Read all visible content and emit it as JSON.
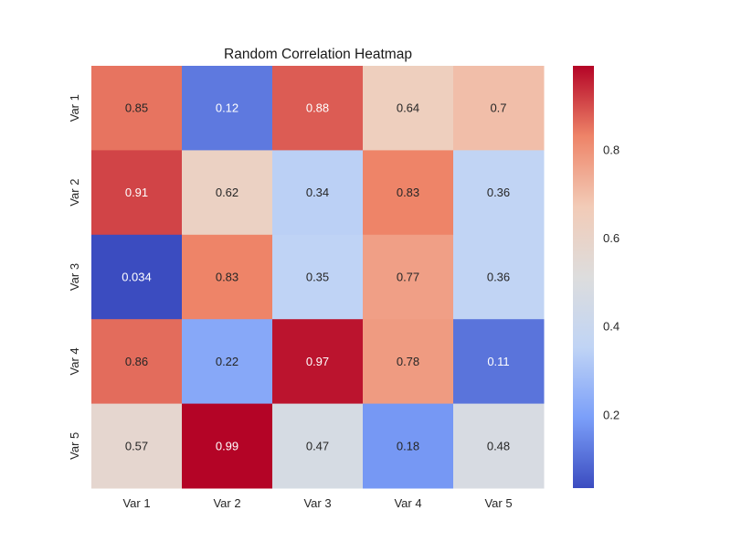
{
  "chart_data": {
    "type": "heatmap",
    "title": "Random Correlation Heatmap",
    "xlabel": "",
    "ylabel": "",
    "rows": [
      "Var 1",
      "Var 2",
      "Var 3",
      "Var 4",
      "Var 5"
    ],
    "columns": [
      "Var 1",
      "Var 2",
      "Var 3",
      "Var 4",
      "Var 5"
    ],
    "values": [
      [
        0.85,
        0.12,
        0.88,
        0.64,
        0.7
      ],
      [
        0.91,
        0.62,
        0.34,
        0.83,
        0.36
      ],
      [
        0.034,
        0.83,
        0.35,
        0.77,
        0.36
      ],
      [
        0.86,
        0.22,
        0.97,
        0.78,
        0.11
      ],
      [
        0.57,
        0.99,
        0.47,
        0.18,
        0.48
      ]
    ],
    "labels": [
      [
        "0.85",
        "0.12",
        "0.88",
        "0.64",
        "0.7"
      ],
      [
        "0.91",
        "0.62",
        "0.34",
        "0.83",
        "0.36"
      ],
      [
        "0.034",
        "0.83",
        "0.35",
        "0.77",
        "0.36"
      ],
      [
        "0.86",
        "0.22",
        "0.97",
        "0.78",
        "0.11"
      ],
      [
        "0.57",
        "0.99",
        "0.47",
        "0.18",
        "0.48"
      ]
    ],
    "colormap": "coolwarm",
    "color_stops": [
      "#3b4cc0",
      "#7b9ff9",
      "#c0d4f5",
      "#dddddd",
      "#f2cbb7",
      "#ee8468",
      "#b40426"
    ],
    "colorbar": {
      "range": [
        0.034,
        0.99
      ],
      "ticks": [
        0.2,
        0.4,
        0.6,
        0.8
      ],
      "tick_labels": [
        "0.2",
        "0.4",
        "0.6",
        "0.8"
      ]
    },
    "grid": false,
    "legend": "colorbar-right"
  }
}
